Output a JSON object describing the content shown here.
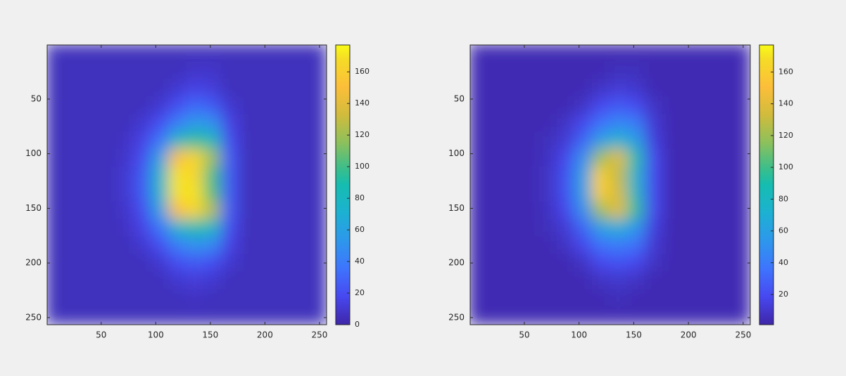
{
  "chart_data": [
    {
      "type": "heatmap",
      "colormap": "parula",
      "ydir": "reverse",
      "x": [
        8,
        24,
        40,
        56,
        72,
        88,
        104,
        120,
        136,
        152,
        168,
        184,
        200,
        216,
        232,
        248
      ],
      "y": [
        8,
        24,
        40,
        56,
        72,
        88,
        104,
        120,
        136,
        152,
        168,
        184,
        200,
        216,
        232,
        248
      ],
      "xlim": [
        0.5,
        256.5
      ],
      "ylim": [
        0.5,
        256.5
      ],
      "xticks": [
        50,
        100,
        150,
        200,
        250
      ],
      "yticks": [
        50,
        100,
        150,
        200,
        250
      ],
      "clim": [
        0,
        177
      ],
      "cticks": [
        0,
        20,
        40,
        60,
        80,
        100,
        120,
        140,
        160
      ],
      "values": [
        [
          5,
          5,
          5,
          5,
          5,
          5,
          5,
          5,
          5,
          5,
          5,
          5,
          5,
          5,
          5,
          5
        ],
        [
          5,
          5,
          5,
          5,
          5,
          5,
          5,
          5,
          8,
          8,
          5,
          5,
          5,
          5,
          5,
          5
        ],
        [
          5,
          5,
          5,
          5,
          5,
          5,
          5,
          10,
          15,
          12,
          5,
          5,
          5,
          5,
          5,
          5
        ],
        [
          5,
          5,
          5,
          5,
          5,
          5,
          10,
          20,
          30,
          25,
          10,
          5,
          5,
          5,
          5,
          5
        ],
        [
          5,
          5,
          5,
          5,
          5,
          10,
          20,
          40,
          55,
          50,
          15,
          5,
          5,
          5,
          5,
          5
        ],
        [
          5,
          5,
          5,
          5,
          7,
          15,
          35,
          80,
          95,
          85,
          20,
          5,
          5,
          5,
          5,
          5
        ],
        [
          5,
          5,
          5,
          5,
          8,
          20,
          60,
          150,
          165,
          120,
          25,
          5,
          5,
          5,
          5,
          5
        ],
        [
          5,
          5,
          5,
          5,
          10,
          25,
          75,
          170,
          165,
          100,
          25,
          5,
          5,
          5,
          5,
          5
        ],
        [
          5,
          5,
          5,
          5,
          10,
          25,
          75,
          170,
          170,
          105,
          25,
          5,
          5,
          5,
          5,
          5
        ],
        [
          5,
          5,
          5,
          5,
          8,
          20,
          60,
          150,
          165,
          125,
          25,
          5,
          5,
          5,
          5,
          5
        ],
        [
          5,
          5,
          5,
          5,
          7,
          15,
          35,
          75,
          90,
          80,
          20,
          5,
          5,
          5,
          5,
          5
        ],
        [
          5,
          5,
          5,
          5,
          5,
          10,
          20,
          40,
          50,
          45,
          15,
          5,
          5,
          5,
          5,
          5
        ],
        [
          5,
          5,
          5,
          5,
          5,
          5,
          10,
          20,
          25,
          20,
          10,
          5,
          5,
          5,
          5,
          5
        ],
        [
          5,
          5,
          5,
          5,
          5,
          5,
          5,
          10,
          12,
          10,
          5,
          5,
          5,
          5,
          5,
          5
        ],
        [
          5,
          5,
          5,
          5,
          5,
          5,
          5,
          5,
          7,
          5,
          5,
          5,
          5,
          5,
          5,
          5
        ],
        [
          5,
          5,
          5,
          5,
          5,
          5,
          5,
          5,
          5,
          5,
          5,
          5,
          5,
          5,
          5,
          5
        ]
      ]
    },
    {
      "type": "heatmap",
      "colormap": "parula",
      "ydir": "reverse",
      "x": [
        8,
        24,
        40,
        56,
        72,
        88,
        104,
        120,
        136,
        152,
        168,
        184,
        200,
        216,
        232,
        248
      ],
      "y": [
        8,
        24,
        40,
        56,
        72,
        88,
        104,
        120,
        136,
        152,
        168,
        184,
        200,
        216,
        232,
        248
      ],
      "xlim": [
        0.5,
        256.5
      ],
      "ylim": [
        0.5,
        256.5
      ],
      "xticks": [
        50,
        100,
        150,
        200,
        250
      ],
      "yticks": [
        50,
        100,
        150,
        200,
        250
      ],
      "clim": [
        1,
        177
      ],
      "cticks": [
        20,
        40,
        60,
        80,
        100,
        120,
        140,
        160
      ],
      "values": [
        [
          4,
          4,
          4,
          4,
          4,
          4,
          4,
          4,
          4,
          4,
          4,
          4,
          4,
          4,
          4,
          4
        ],
        [
          4,
          4,
          4,
          4,
          4,
          4,
          4,
          4,
          6,
          6,
          4,
          4,
          4,
          4,
          4,
          4
        ],
        [
          4,
          4,
          4,
          4,
          4,
          4,
          4,
          8,
          12,
          10,
          4,
          4,
          4,
          4,
          4,
          4
        ],
        [
          4,
          4,
          4,
          4,
          4,
          4,
          8,
          18,
          25,
          20,
          8,
          4,
          4,
          4,
          4,
          4
        ],
        [
          4,
          4,
          4,
          4,
          4,
          8,
          18,
          35,
          45,
          40,
          12,
          4,
          4,
          4,
          4,
          4
        ],
        [
          4,
          4,
          4,
          4,
          6,
          12,
          30,
          60,
          75,
          60,
          15,
          4,
          4,
          4,
          4,
          4
        ],
        [
          4,
          4,
          4,
          4,
          7,
          18,
          50,
          120,
          140,
          90,
          20,
          4,
          4,
          4,
          4,
          4
        ],
        [
          4,
          4,
          4,
          4,
          8,
          22,
          60,
          160,
          130,
          75,
          20,
          4,
          4,
          4,
          4,
          4
        ],
        [
          4,
          4,
          4,
          4,
          8,
          22,
          60,
          160,
          135,
          80,
          20,
          4,
          4,
          4,
          4,
          4
        ],
        [
          4,
          4,
          4,
          4,
          7,
          18,
          50,
          120,
          140,
          95,
          20,
          4,
          4,
          4,
          4,
          4
        ],
        [
          4,
          4,
          4,
          4,
          6,
          12,
          30,
          60,
          70,
          55,
          15,
          4,
          4,
          4,
          4,
          4
        ],
        [
          4,
          4,
          4,
          4,
          4,
          8,
          18,
          35,
          40,
          35,
          12,
          4,
          4,
          4,
          4,
          4
        ],
        [
          4,
          4,
          4,
          4,
          4,
          4,
          8,
          18,
          22,
          18,
          8,
          4,
          4,
          4,
          4,
          4
        ],
        [
          4,
          4,
          4,
          4,
          4,
          4,
          4,
          8,
          10,
          8,
          4,
          4,
          4,
          4,
          4,
          4
        ],
        [
          4,
          4,
          4,
          4,
          4,
          4,
          4,
          4,
          6,
          4,
          4,
          4,
          4,
          4,
          4,
          4
        ],
        [
          4,
          4,
          4,
          4,
          4,
          4,
          4,
          4,
          4,
          4,
          4,
          4,
          4,
          4,
          4,
          4
        ]
      ]
    }
  ]
}
